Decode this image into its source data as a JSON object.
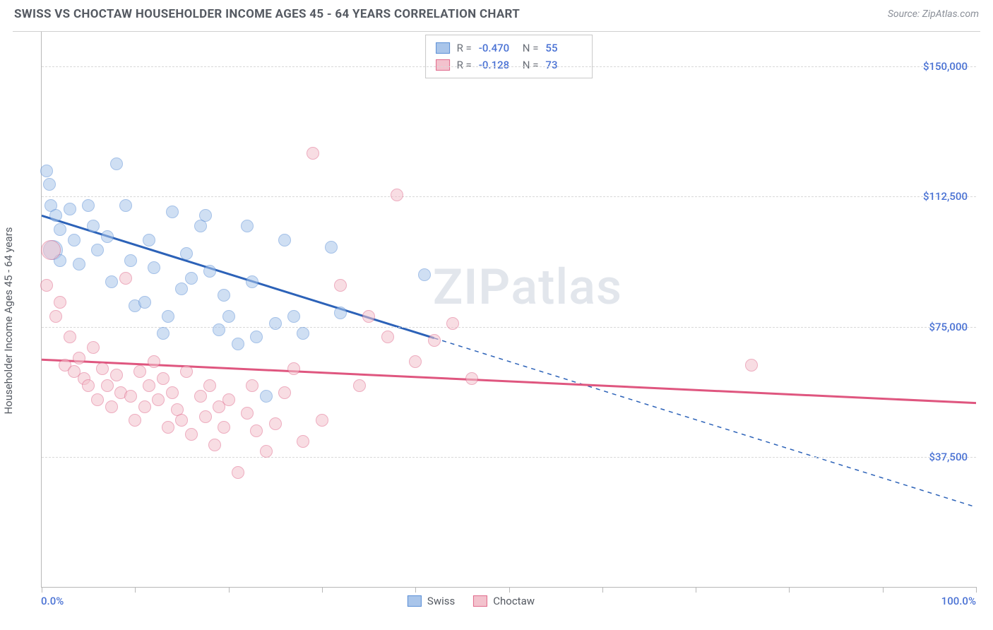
{
  "title": "SWISS VS CHOCTAW HOUSEHOLDER INCOME AGES 45 - 64 YEARS CORRELATION CHART",
  "source": "Source: ZipAtlas.com",
  "watermark": "ZIPatlas",
  "chart": {
    "type": "scatter",
    "background_color": "#ffffff",
    "grid_color": "#d8d8d8",
    "axis_color": "#b8b8b8",
    "y_axis_label": "Householder Income Ages 45 - 64 years",
    "y_axis_label_fontsize": 15,
    "xlim": [
      0,
      100
    ],
    "ylim": [
      0,
      160000
    ],
    "x_ticks": [
      0,
      10,
      20,
      30,
      40,
      50,
      60,
      70,
      80,
      90,
      100
    ],
    "x_tick_label_left": "0.0%",
    "x_tick_label_right": "100.0%",
    "y_gridlines": [
      37500,
      75000,
      112500,
      150000
    ],
    "y_tick_labels": [
      "$37,500",
      "$75,000",
      "$112,500",
      "$150,000"
    ],
    "y_tick_color": "#4a72d4",
    "marker_radius": 9,
    "marker_radius_big": 14,
    "marker_opacity": 0.55,
    "series": [
      {
        "name": "Swiss",
        "fill": "#a9c5ea",
        "stroke": "#5b8fd6",
        "trend_color": "#2c62b8",
        "trend_width": 3,
        "trend_dash_after_x": 42,
        "trend_start": [
          0,
          107000
        ],
        "trend_end": [
          100,
          23000
        ],
        "R": "-0.470",
        "N": "55",
        "points": [
          [
            0.5,
            120000
          ],
          [
            0.8,
            116000
          ],
          [
            1.0,
            110000
          ],
          [
            1.2,
            97000,
            "big"
          ],
          [
            1.5,
            107000
          ],
          [
            2.0,
            103000
          ],
          [
            2.0,
            94000
          ],
          [
            3.0,
            109000
          ],
          [
            3.5,
            100000
          ],
          [
            4.0,
            93000
          ],
          [
            5.0,
            110000
          ],
          [
            5.5,
            104000
          ],
          [
            6.0,
            97000
          ],
          [
            7.0,
            101000
          ],
          [
            7.5,
            88000
          ],
          [
            8.0,
            122000
          ],
          [
            9.0,
            110000
          ],
          [
            9.5,
            94000
          ],
          [
            10.0,
            81000
          ],
          [
            11.0,
            82000
          ],
          [
            11.5,
            100000
          ],
          [
            12.0,
            92000
          ],
          [
            13.0,
            73000
          ],
          [
            13.5,
            78000
          ],
          [
            14.0,
            108000
          ],
          [
            15.0,
            86000
          ],
          [
            15.5,
            96000
          ],
          [
            16.0,
            89000
          ],
          [
            17.0,
            104000
          ],
          [
            17.5,
            107000
          ],
          [
            18.0,
            91000
          ],
          [
            19.0,
            74000
          ],
          [
            19.5,
            84000
          ],
          [
            20.0,
            78000
          ],
          [
            21.0,
            70000
          ],
          [
            22.0,
            104000
          ],
          [
            22.5,
            88000
          ],
          [
            23.0,
            72000
          ],
          [
            24.0,
            55000
          ],
          [
            25.0,
            76000
          ],
          [
            26.0,
            100000
          ],
          [
            27.0,
            78000
          ],
          [
            28.0,
            73000
          ],
          [
            31.0,
            98000
          ],
          [
            32.0,
            79000
          ],
          [
            41.0,
            90000
          ]
        ]
      },
      {
        "name": "Choctaw",
        "fill": "#f3c2cd",
        "stroke": "#e06a8c",
        "trend_color": "#df567f",
        "trend_width": 3,
        "trend_start": [
          0,
          65500
        ],
        "trend_end": [
          100,
          53000
        ],
        "R": "-0.128",
        "N": "73",
        "points": [
          [
            0.5,
            87000
          ],
          [
            1.0,
            97000,
            "big"
          ],
          [
            1.5,
            78000
          ],
          [
            2.0,
            82000
          ],
          [
            2.5,
            64000
          ],
          [
            3.0,
            72000
          ],
          [
            3.5,
            62000
          ],
          [
            4.0,
            66000
          ],
          [
            4.5,
            60000
          ],
          [
            5.0,
            58000
          ],
          [
            5.5,
            69000
          ],
          [
            6.0,
            54000
          ],
          [
            6.5,
            63000
          ],
          [
            7.0,
            58000
          ],
          [
            7.5,
            52000
          ],
          [
            8.0,
            61000
          ],
          [
            8.5,
            56000
          ],
          [
            9.0,
            89000
          ],
          [
            9.5,
            55000
          ],
          [
            10.0,
            48000
          ],
          [
            10.5,
            62000
          ],
          [
            11.0,
            52000
          ],
          [
            11.5,
            58000
          ],
          [
            12.0,
            65000
          ],
          [
            12.5,
            54000
          ],
          [
            13.0,
            60000
          ],
          [
            13.5,
            46000
          ],
          [
            14.0,
            56000
          ],
          [
            14.5,
            51000
          ],
          [
            15.0,
            48000
          ],
          [
            15.5,
            62000
          ],
          [
            16.0,
            44000
          ],
          [
            17.0,
            55000
          ],
          [
            17.5,
            49000
          ],
          [
            18.0,
            58000
          ],
          [
            18.5,
            41000
          ],
          [
            19.0,
            52000
          ],
          [
            19.5,
            46000
          ],
          [
            20.0,
            54000
          ],
          [
            21.0,
            33000
          ],
          [
            22.0,
            50000
          ],
          [
            22.5,
            58000
          ],
          [
            23.0,
            45000
          ],
          [
            24.0,
            39000
          ],
          [
            25.0,
            47000
          ],
          [
            26.0,
            56000
          ],
          [
            27.0,
            63000
          ],
          [
            28.0,
            42000
          ],
          [
            29.0,
            125000
          ],
          [
            30.0,
            48000
          ],
          [
            32.0,
            87000
          ],
          [
            34.0,
            58000
          ],
          [
            35.0,
            78000
          ],
          [
            37.0,
            72000
          ],
          [
            38.0,
            113000
          ],
          [
            40.0,
            65000
          ],
          [
            42.0,
            71000
          ],
          [
            44.0,
            76000
          ],
          [
            46.0,
            60000
          ],
          [
            76.0,
            64000
          ]
        ]
      }
    ],
    "stats_legend": {
      "r_label": "R =",
      "n_label": "N ="
    },
    "series_legend": {
      "labels": [
        "Swiss",
        "Choctaw"
      ]
    }
  }
}
